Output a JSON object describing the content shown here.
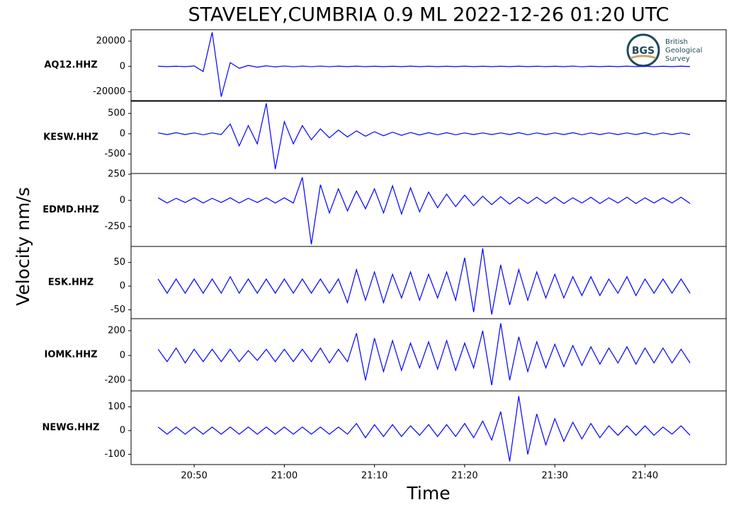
{
  "chart_data": [
    {
      "type": "line",
      "title": "STAVELEY,CUMBRIA 0.9 ML   2022-12-26 01:20 UTC",
      "y_label": "Velocity nm/s",
      "logo": {
        "initials": "BGS",
        "lines": [
          "British",
          "Geological",
          "Survey"
        ]
      },
      "label": "AQ12.HHZ",
      "color": "#0000ff",
      "ylim": [
        -27000,
        29000
      ],
      "yticks": [
        -20000,
        0,
        20000
      ],
      "xlim": [
        "20:43",
        "21:49"
      ],
      "x": [
        "20:46",
        "20:47",
        "20:48",
        "20:49",
        "20:50",
        "20:51",
        "20:52",
        "20:53",
        "20:54",
        "20:55",
        "20:56",
        "20:57",
        "20:58",
        "20:59",
        "21:00",
        "21:01",
        "21:02",
        "21:03",
        "21:04",
        "21:05",
        "21:06",
        "21:07",
        "21:08",
        "21:09",
        "21:10",
        "21:11",
        "21:12",
        "21:13",
        "21:14",
        "21:15",
        "21:16",
        "21:17",
        "21:18",
        "21:19",
        "21:20",
        "21:21",
        "21:22",
        "21:23",
        "21:24",
        "21:25",
        "21:26",
        "21:27",
        "21:28",
        "21:29",
        "21:30",
        "21:31",
        "21:32",
        "21:33",
        "21:34",
        "21:35",
        "21:36",
        "21:37",
        "21:38",
        "21:39",
        "21:40",
        "21:41",
        "21:42",
        "21:43",
        "21:44",
        "21:45"
      ],
      "values": [
        150,
        -200,
        180,
        -150,
        400,
        -4000,
        27000,
        -24000,
        3000,
        -1500,
        800,
        -600,
        500,
        -400,
        350,
        -300,
        300,
        -250,
        250,
        -250,
        200,
        -200,
        200,
        -200,
        180,
        -180,
        180,
        -180,
        200,
        -200,
        180,
        -180,
        180,
        -180,
        200,
        -200,
        180,
        -180,
        180,
        -180,
        200,
        -200,
        180,
        -180,
        180,
        -180,
        300,
        -300,
        180,
        -180,
        180,
        -180,
        200,
        -200,
        180,
        -180,
        180,
        -180,
        200,
        -200
      ]
    },
    {
      "type": "line",
      "label": "KESW.HHZ",
      "color": "#0000ff",
      "ylim": [
        -980,
        800
      ],
      "yticks": [
        -500,
        0,
        500
      ],
      "xlim": [
        "20:43",
        "21:49"
      ],
      "x": [
        "20:46",
        "20:47",
        "20:48",
        "20:49",
        "20:50",
        "20:51",
        "20:52",
        "20:53",
        "20:54",
        "20:55",
        "20:56",
        "20:57",
        "20:58",
        "20:59",
        "21:00",
        "21:01",
        "21:02",
        "21:03",
        "21:04",
        "21:05",
        "21:06",
        "21:07",
        "21:08",
        "21:09",
        "21:10",
        "21:11",
        "21:12",
        "21:13",
        "21:14",
        "21:15",
        "21:16",
        "21:17",
        "21:18",
        "21:19",
        "21:20",
        "21:21",
        "21:22",
        "21:23",
        "21:24",
        "21:25",
        "21:26",
        "21:27",
        "21:28",
        "21:29",
        "21:30",
        "21:31",
        "21:32",
        "21:33",
        "21:34",
        "21:35",
        "21:36",
        "21:37",
        "21:38",
        "21:39",
        "21:40",
        "21:41",
        "21:42",
        "21:43",
        "21:44",
        "21:45"
      ],
      "values": [
        20,
        -20,
        25,
        -20,
        20,
        -25,
        20,
        -20,
        240,
        -300,
        200,
        -250,
        750,
        -870,
        300,
        -250,
        200,
        -150,
        120,
        -100,
        90,
        -80,
        70,
        -60,
        50,
        -50,
        40,
        -40,
        30,
        -30,
        25,
        -25,
        25,
        -25,
        20,
        -20,
        20,
        -20,
        20,
        -20,
        25,
        -25,
        20,
        -20,
        20,
        -20,
        25,
        -25,
        20,
        -20,
        20,
        -20,
        20,
        -20,
        25,
        -25,
        20,
        -20,
        20,
        -20
      ]
    },
    {
      "type": "line",
      "label": "EDMD.HHZ",
      "color": "#0000ff",
      "ylim": [
        -440,
        257
      ],
      "yticks": [
        -250,
        0,
        250
      ],
      "xlim": [
        "20:43",
        "21:49"
      ],
      "x": [
        "20:46",
        "20:47",
        "20:48",
        "20:49",
        "20:50",
        "20:51",
        "20:52",
        "20:53",
        "20:54",
        "20:55",
        "20:56",
        "20:57",
        "20:58",
        "20:59",
        "21:00",
        "21:01",
        "21:02",
        "21:03",
        "21:04",
        "21:05",
        "21:06",
        "21:07",
        "21:08",
        "21:09",
        "21:10",
        "21:11",
        "21:12",
        "21:13",
        "21:14",
        "21:15",
        "21:16",
        "21:17",
        "21:18",
        "21:19",
        "21:20",
        "21:21",
        "21:22",
        "21:23",
        "21:24",
        "21:25",
        "21:26",
        "21:27",
        "21:28",
        "21:29",
        "21:30",
        "21:31",
        "21:32",
        "21:33",
        "21:34",
        "21:35",
        "21:36",
        "21:37",
        "21:38",
        "21:39",
        "21:40",
        "21:41",
        "21:42",
        "21:43",
        "21:44",
        "21:45"
      ],
      "values": [
        25,
        -25,
        20,
        -20,
        25,
        -25,
        20,
        -20,
        25,
        -25,
        20,
        -20,
        25,
        -25,
        25,
        -25,
        220,
        -420,
        150,
        -120,
        110,
        -100,
        90,
        -80,
        110,
        -120,
        140,
        -130,
        120,
        -110,
        80,
        -70,
        60,
        -60,
        50,
        -50,
        40,
        -40,
        35,
        -35,
        30,
        -30,
        30,
        -30,
        30,
        -30,
        25,
        -25,
        30,
        -30,
        25,
        -25,
        30,
        -30,
        25,
        -25,
        25,
        -25,
        30,
        -30
      ]
    },
    {
      "type": "line",
      "label": "ESK.HHZ",
      "color": "#0000ff",
      "ylim": [
        -69,
        84
      ],
      "yticks": [
        -50,
        0,
        50
      ],
      "xlim": [
        "20:43",
        "21:49"
      ],
      "x": [
        "20:46",
        "20:47",
        "20:48",
        "20:49",
        "20:50",
        "20:51",
        "20:52",
        "20:53",
        "20:54",
        "20:55",
        "20:56",
        "20:57",
        "20:58",
        "20:59",
        "21:00",
        "21:01",
        "21:02",
        "21:03",
        "21:04",
        "21:05",
        "21:06",
        "21:07",
        "21:08",
        "21:09",
        "21:10",
        "21:11",
        "21:12",
        "21:13",
        "21:14",
        "21:15",
        "21:16",
        "21:17",
        "21:18",
        "21:19",
        "21:20",
        "21:21",
        "21:22",
        "21:23",
        "21:24",
        "21:25",
        "21:26",
        "21:27",
        "21:28",
        "21:29",
        "21:30",
        "21:31",
        "21:32",
        "21:33",
        "21:34",
        "21:35",
        "21:36",
        "21:37",
        "21:38",
        "21:39",
        "21:40",
        "21:41",
        "21:42",
        "21:43",
        "21:44",
        "21:45"
      ],
      "values": [
        15,
        -15,
        15,
        -15,
        15,
        -15,
        15,
        -15,
        20,
        -15,
        15,
        -15,
        15,
        -15,
        15,
        -15,
        15,
        -15,
        15,
        -15,
        15,
        -35,
        35,
        -30,
        30,
        -35,
        25,
        -25,
        30,
        -30,
        25,
        -25,
        30,
        -30,
        60,
        -55,
        80,
        -60,
        45,
        -40,
        35,
        -30,
        30,
        -25,
        25,
        -25,
        20,
        -20,
        20,
        -20,
        15,
        -15,
        20,
        -20,
        15,
        -15,
        15,
        -15,
        15,
        -15
      ]
    },
    {
      "type": "line",
      "label": "IOMK.HHZ",
      "color": "#0000ff",
      "ylim": [
        -286,
        297
      ],
      "yticks": [
        -200,
        0,
        200
      ],
      "xlim": [
        "20:43",
        "21:49"
      ],
      "x": [
        "20:46",
        "20:47",
        "20:48",
        "20:49",
        "20:50",
        "20:51",
        "20:52",
        "20:53",
        "20:54",
        "20:55",
        "20:56",
        "20:57",
        "20:58",
        "20:59",
        "21:00",
        "21:01",
        "21:02",
        "21:03",
        "21:04",
        "21:05",
        "21:06",
        "21:07",
        "21:08",
        "21:09",
        "21:10",
        "21:11",
        "21:12",
        "21:13",
        "21:14",
        "21:15",
        "21:16",
        "21:17",
        "21:18",
        "21:19",
        "21:20",
        "21:21",
        "21:22",
        "21:23",
        "21:24",
        "21:25",
        "21:26",
        "21:27",
        "21:28",
        "21:29",
        "21:30",
        "21:31",
        "21:32",
        "21:33",
        "21:34",
        "21:35",
        "21:36",
        "21:37",
        "21:38",
        "21:39",
        "21:40",
        "21:41",
        "21:42",
        "21:43",
        "21:44",
        "21:45"
      ],
      "values": [
        50,
        -50,
        60,
        -60,
        50,
        -50,
        50,
        -50,
        50,
        -50,
        40,
        -40,
        50,
        -50,
        50,
        -50,
        50,
        -50,
        60,
        -60,
        50,
        -50,
        180,
        -200,
        140,
        -130,
        120,
        -120,
        100,
        -100,
        110,
        -110,
        120,
        -120,
        100,
        -100,
        200,
        -240,
        260,
        -200,
        150,
        -130,
        110,
        -100,
        90,
        -90,
        80,
        -80,
        70,
        -70,
        60,
        -60,
        70,
        -70,
        60,
        -60,
        60,
        -60,
        50,
        -60
      ]
    },
    {
      "type": "line",
      "label": "NEWG.HHZ",
      "x_label": "Time",
      "color": "#0000ff",
      "ylim": [
        -143,
        167
      ],
      "yticks": [
        -100,
        0,
        100
      ],
      "xlim": [
        "20:43",
        "21:49"
      ],
      "xticks": [
        "20:50",
        "21:00",
        "21:10",
        "21:20",
        "21:30",
        "21:40"
      ],
      "x": [
        "20:46",
        "20:47",
        "20:48",
        "20:49",
        "20:50",
        "20:51",
        "20:52",
        "20:53",
        "20:54",
        "20:55",
        "20:56",
        "20:57",
        "20:58",
        "20:59",
        "21:00",
        "21:01",
        "21:02",
        "21:03",
        "21:04",
        "21:05",
        "21:06",
        "21:07",
        "21:08",
        "21:09",
        "21:10",
        "21:11",
        "21:12",
        "21:13",
        "21:14",
        "21:15",
        "21:16",
        "21:17",
        "21:18",
        "21:19",
        "21:20",
        "21:21",
        "21:22",
        "21:23",
        "21:24",
        "21:25",
        "21:26",
        "21:27",
        "21:28",
        "21:29",
        "21:30",
        "21:31",
        "21:32",
        "21:33",
        "21:34",
        "21:35",
        "21:36",
        "21:37",
        "21:38",
        "21:39",
        "21:40",
        "21:41",
        "21:42",
        "21:43",
        "21:44",
        "21:45"
      ],
      "values": [
        15,
        -15,
        15,
        -15,
        15,
        -15,
        15,
        -15,
        15,
        -15,
        15,
        -15,
        15,
        -15,
        15,
        -15,
        15,
        -15,
        15,
        -15,
        15,
        -15,
        30,
        -30,
        25,
        -25,
        25,
        -25,
        20,
        -20,
        25,
        -25,
        25,
        -25,
        30,
        -30,
        40,
        -40,
        80,
        -130,
        145,
        -100,
        70,
        -60,
        50,
        -45,
        35,
        -35,
        30,
        -30,
        20,
        -20,
        20,
        -20,
        20,
        -20,
        15,
        -15,
        20,
        -20
      ]
    }
  ]
}
